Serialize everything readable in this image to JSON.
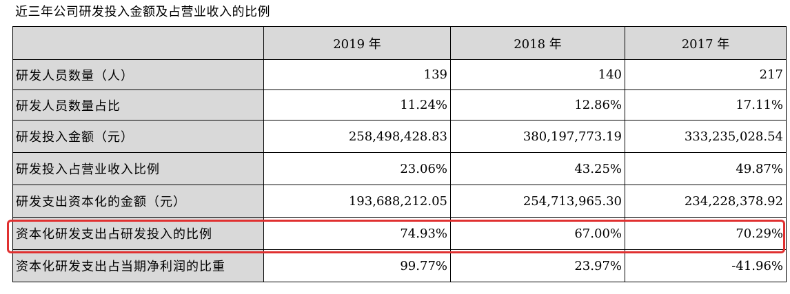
{
  "caption": "近三年公司研发投入金额及占营业收入的比例",
  "colors": {
    "header_bg": "#d9d9d9",
    "highlight": "#e03030"
  },
  "table": {
    "header": {
      "blank": "",
      "years": [
        "2019 年",
        "2018 年",
        "2017 年"
      ]
    },
    "rows": [
      {
        "label": "研发人员数量（人）",
        "values": [
          "139",
          "140",
          "217"
        ]
      },
      {
        "label": "研发人员数量占比",
        "values": [
          "11.24%",
          "12.86%",
          "17.11%"
        ]
      },
      {
        "label": "研发投入金额（元）",
        "values": [
          "258,498,428.83",
          "380,197,773.19",
          "333,235,028.54"
        ]
      },
      {
        "label": "研发投入占营业收入比例",
        "values": [
          "23.06%",
          "43.25%",
          "49.87%"
        ]
      },
      {
        "label": "研发支出资本化的金额（元）",
        "values": [
          "193,688,212.05",
          "254,713,965.30",
          "234,228,378.92"
        ]
      },
      {
        "label": "资本化研发支出占研发投入的比例",
        "values": [
          "74.93%",
          "67.00%",
          "70.29%"
        ]
      },
      {
        "label": "资本化研发支出占当期净利润的比重",
        "values": [
          "99.77%",
          "23.97%",
          "-41.96%"
        ]
      }
    ],
    "highlighted_row": 5
  }
}
